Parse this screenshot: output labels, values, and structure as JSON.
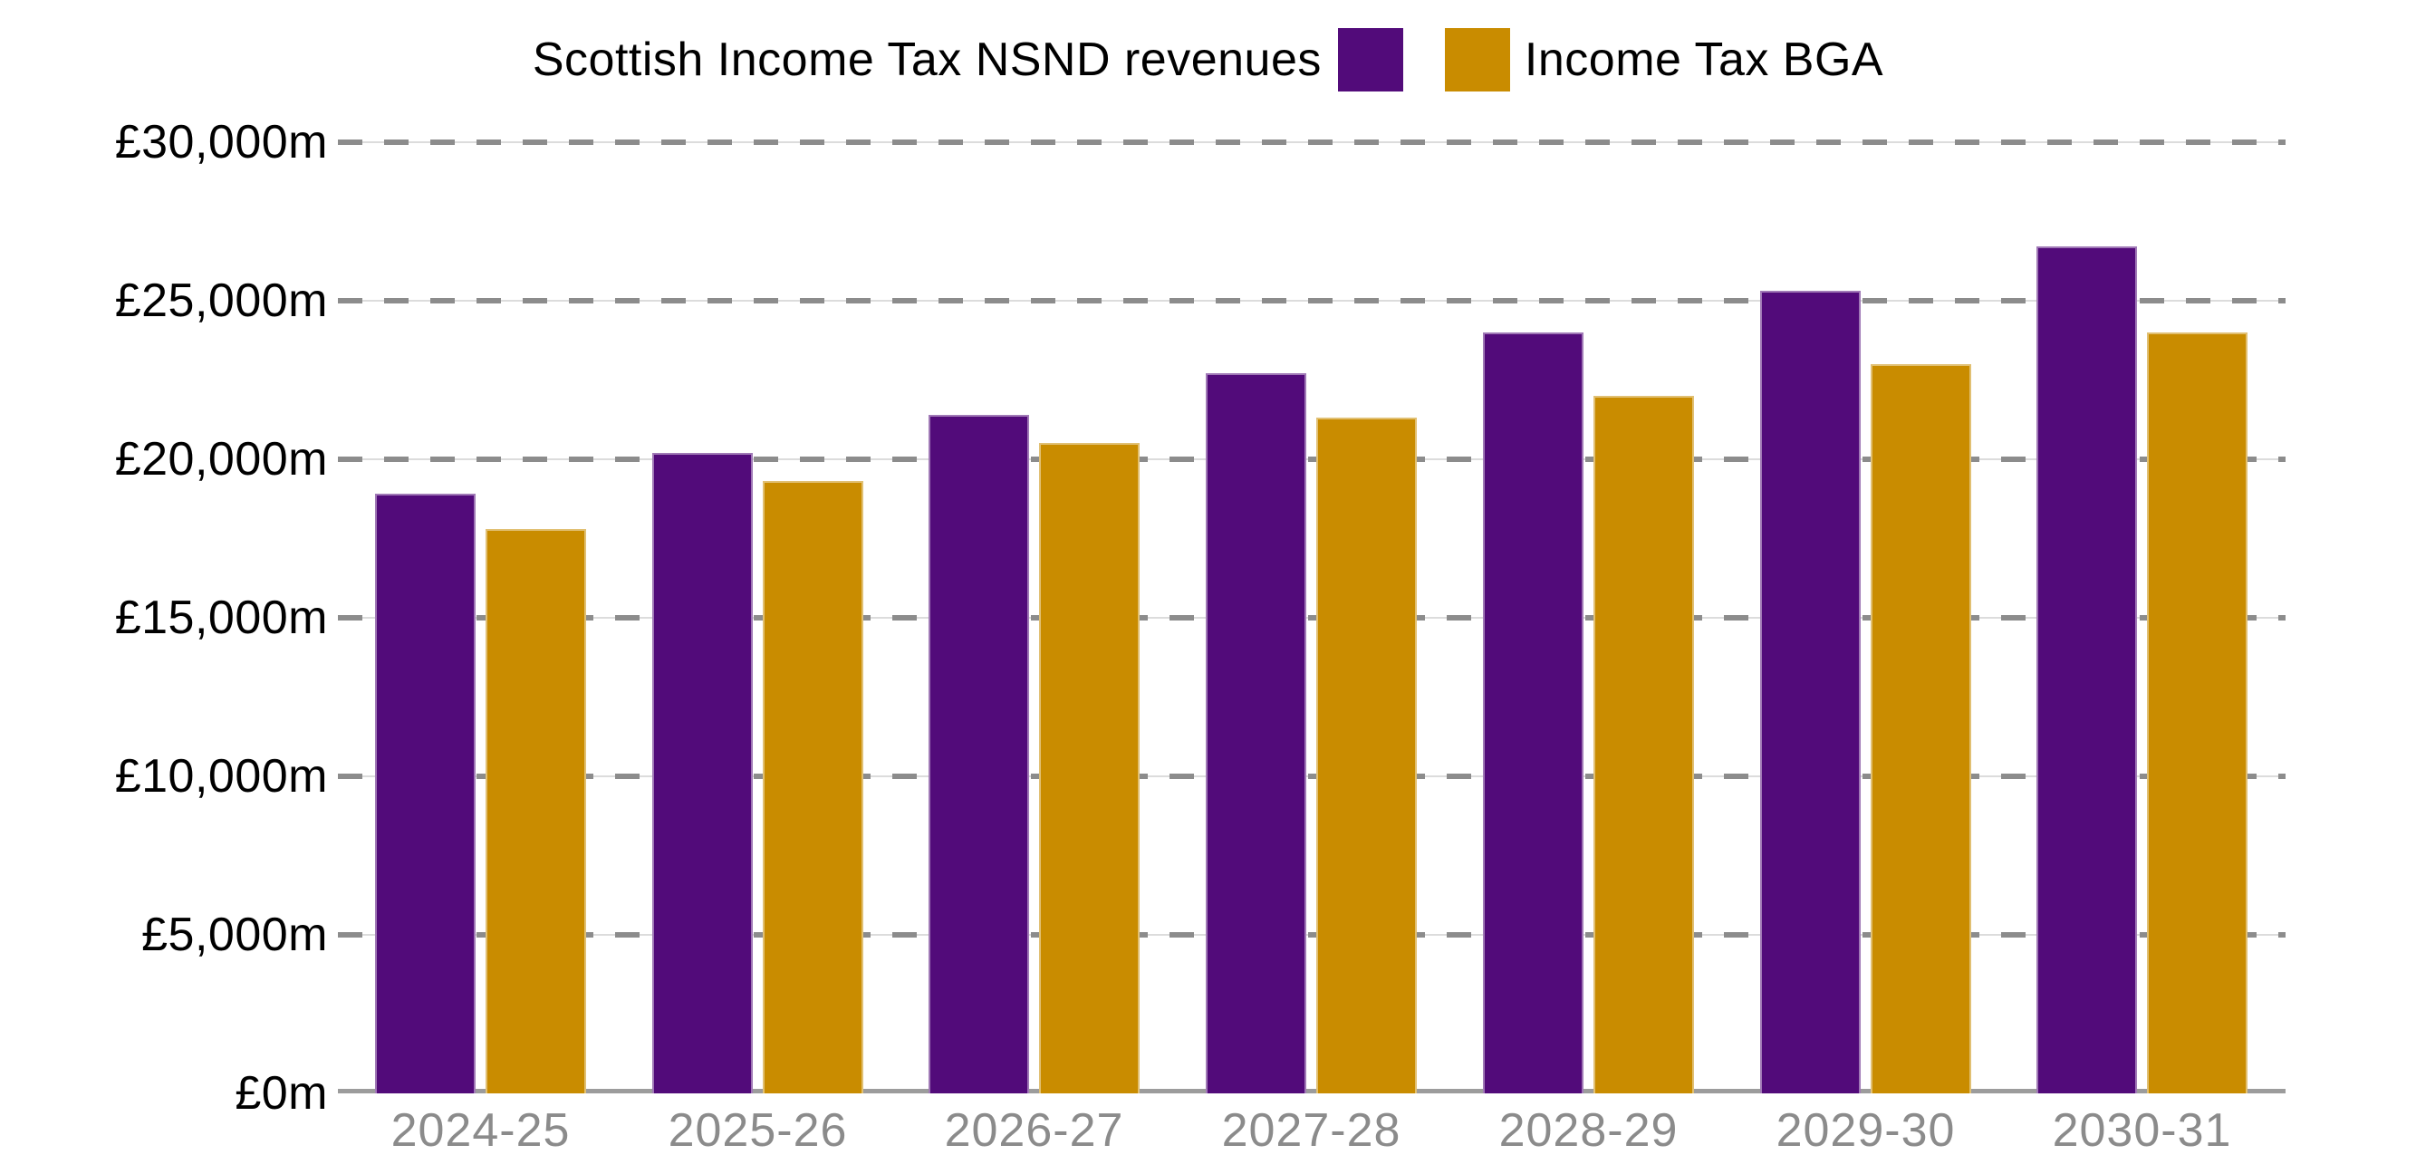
{
  "legend": {
    "items": [
      {
        "label": "Scottish Income Tax NSND revenues",
        "color": "#520B7A"
      },
      {
        "label": "Income Tax BGA",
        "color": "#C98C00"
      }
    ]
  },
  "colors": {
    "nsnd_purple": "#520B7A",
    "bga_gold": "#C98C00",
    "grid_dash_gray": "#8C8C8C",
    "grid_thin_light": "#DCDCDC",
    "axis_gray": "#9C9C9C",
    "x_label_gray": "#8B8B8B",
    "text_black": "#000000",
    "background": "#FFFFFF"
  },
  "chart_data": {
    "type": "bar",
    "categories": [
      "2024-25",
      "2025-26",
      "2026-27",
      "2027-28",
      "2028-29",
      "2029-30",
      "2030-31"
    ],
    "series": [
      {
        "name": "Scottish Income Tax NSND revenues",
        "color": "#520B7A",
        "values": [
          18900,
          20200,
          21400,
          22700,
          24000,
          25300,
          26700
        ]
      },
      {
        "name": "Income Tax BGA",
        "color": "#C98C00",
        "values": [
          17800,
          19300,
          20500,
          21300,
          22000,
          23000,
          24000
        ]
      }
    ],
    "unit": "£m",
    "ylim": [
      0,
      30000
    ],
    "y_ticks": [
      {
        "value": 30000,
        "label": "£30,000m"
      },
      {
        "value": 25000,
        "label": "£25,000m"
      },
      {
        "value": 20000,
        "label": "£20,000m"
      },
      {
        "value": 15000,
        "label": "£15,000m"
      },
      {
        "value": 10000,
        "label": "£10,000m"
      },
      {
        "value": 5000,
        "label": "£5,000m"
      },
      {
        "value": 0,
        "label": "£0m"
      }
    ],
    "grid": "dashed-horizontal",
    "legend_position": "top"
  }
}
